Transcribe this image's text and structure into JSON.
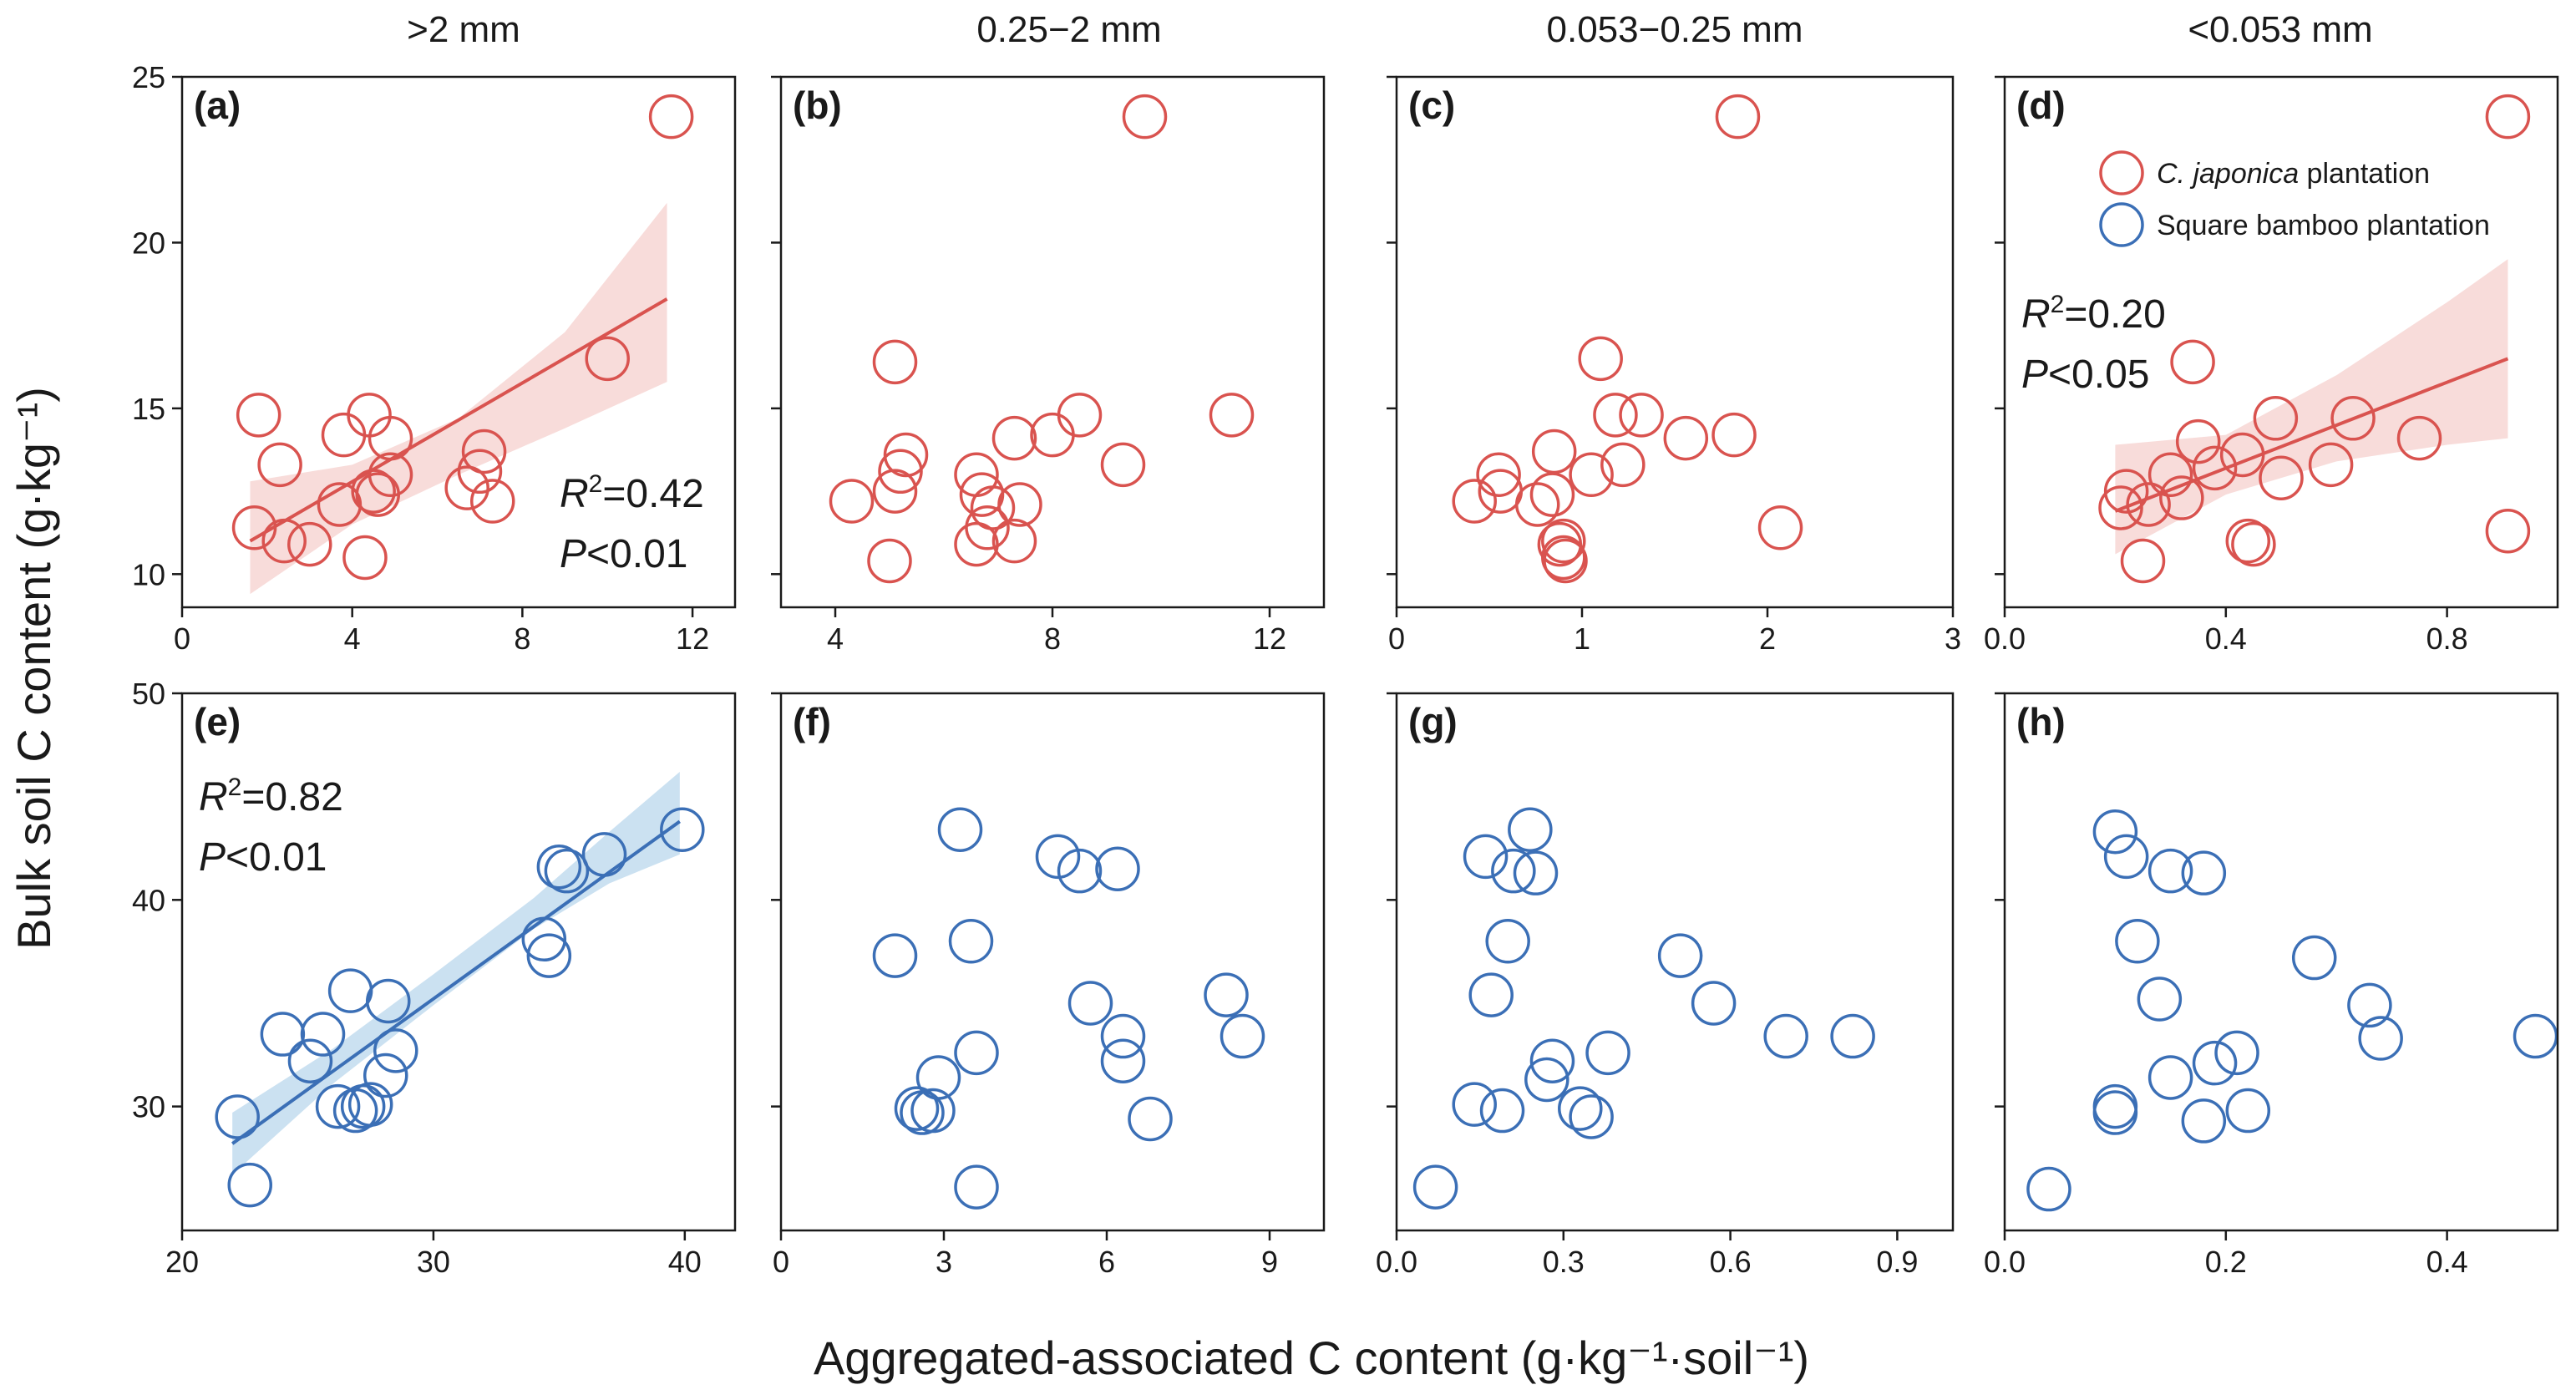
{
  "figure": {
    "column_titles": [
      ">2 mm",
      "0.25−2 mm",
      "0.053−0.25 mm",
      "<0.053 mm"
    ],
    "y_axis_title": "Bulk soil C content (g·kg⁻¹)",
    "x_axis_title": "Aggregated-associated C content (g·kg⁻¹·soil⁻¹)",
    "colors": {
      "japonica": "#d9534f",
      "bamboo": "#3b6fb6",
      "japonica_band": "#f4c4c2",
      "bamboo_band": "#a9cde8"
    }
  },
  "legend": {
    "entries": [
      {
        "italic": "C. japonica",
        "rest": " plantation",
        "series": "japonica"
      },
      {
        "italic": "",
        "rest": "Square bamboo plantation",
        "series": "bamboo"
      }
    ]
  },
  "chart_data": [
    {
      "type": "scatter",
      "panel": "(a)",
      "series": "japonica",
      "xlim": [
        0,
        13
      ],
      "ylim": [
        9,
        25
      ],
      "xticks": [
        0,
        4,
        8,
        12
      ],
      "yticks": [
        10,
        15,
        20,
        25
      ],
      "xtick_labels": [
        "0",
        "4",
        "8",
        "12"
      ],
      "ytick_labels": [
        "10",
        "15",
        "20",
        "25"
      ],
      "x": [
        1.7,
        1.8,
        2.3,
        2.4,
        3.0,
        3.7,
        3.8,
        4.3,
        4.4,
        4.5,
        4.6,
        4.9,
        4.9,
        6.7,
        7.0,
        7.1,
        7.3,
        10.0,
        11.5
      ],
      "y": [
        11.4,
        14.8,
        13.3,
        11.0,
        10.9,
        12.1,
        14.2,
        10.5,
        14.8,
        12.5,
        12.4,
        14.1,
        13.0,
        12.6,
        13.1,
        13.7,
        12.2,
        16.5,
        23.8
      ],
      "fit": {
        "x": [
          1.6,
          11.4
        ],
        "y": [
          11.0,
          18.3
        ]
      },
      "band": {
        "x": [
          1.6,
          4.0,
          6.5,
          9.0,
          11.4
        ],
        "lower": [
          9.4,
          11.5,
          13.0,
          14.4,
          15.8
        ],
        "upper": [
          12.8,
          13.3,
          14.7,
          17.3,
          21.2
        ]
      },
      "stats": {
        "r2_label": "R",
        "r2_sup": "2",
        "r2_value": "=0.42",
        "p_label": "P",
        "p_value": "<0.01"
      }
    },
    {
      "type": "scatter",
      "panel": "(b)",
      "series": "japonica",
      "xlim": [
        3,
        13
      ],
      "ylim": [
        9,
        25
      ],
      "xticks": [
        4,
        8,
        12
      ],
      "yticks": [
        10,
        15,
        20,
        25
      ],
      "xtick_labels": [
        "4",
        "8",
        "12"
      ],
      "ytick_labels": [
        "",
        "",
        "",
        ""
      ],
      "x": [
        4.3,
        5.0,
        5.1,
        5.1,
        5.2,
        5.3,
        6.6,
        6.6,
        6.7,
        6.8,
        6.9,
        7.3,
        7.3,
        7.4,
        8.0,
        8.5,
        9.3,
        9.7,
        11.3
      ],
      "y": [
        12.2,
        10.4,
        16.4,
        12.5,
        13.1,
        13.6,
        13.0,
        10.9,
        12.4,
        11.4,
        12.0,
        14.1,
        11.0,
        12.1,
        14.2,
        14.8,
        13.3,
        23.8,
        14.8
      ],
      "fit": null,
      "band": null,
      "stats": null
    },
    {
      "type": "scatter",
      "panel": "(c)",
      "series": "japonica",
      "xlim": [
        0,
        3
      ],
      "ylim": [
        9,
        25
      ],
      "xticks": [
        0,
        1,
        2,
        3
      ],
      "yticks": [
        10,
        15,
        20,
        25
      ],
      "xtick_labels": [
        "0",
        "1",
        "2",
        "3"
      ],
      "ytick_labels": [
        "",
        "",
        "",
        ""
      ],
      "x": [
        0.42,
        0.55,
        0.56,
        0.76,
        0.84,
        0.85,
        0.88,
        0.9,
        0.9,
        0.91,
        1.05,
        1.1,
        1.18,
        1.22,
        1.32,
        1.56,
        1.82,
        1.84,
        2.07
      ],
      "y": [
        12.2,
        13.0,
        12.5,
        12.1,
        12.4,
        13.7,
        10.9,
        11.0,
        10.5,
        10.4,
        13.0,
        16.5,
        14.8,
        13.3,
        14.8,
        14.1,
        14.2,
        23.8,
        11.4
      ],
      "fit": null,
      "band": null,
      "stats": null
    },
    {
      "type": "scatter",
      "panel": "(d)",
      "series": "japonica",
      "xlim": [
        0.0,
        1.0
      ],
      "ylim": [
        9,
        25
      ],
      "xticks": [
        0.0,
        0.4,
        0.8
      ],
      "yticks": [
        10,
        15,
        20,
        25
      ],
      "xtick_labels": [
        "0.0",
        "0.4",
        "0.8"
      ],
      "ytick_labels": [
        "",
        "",
        "",
        ""
      ],
      "x": [
        0.21,
        0.22,
        0.25,
        0.26,
        0.3,
        0.32,
        0.34,
        0.35,
        0.38,
        0.43,
        0.44,
        0.45,
        0.49,
        0.5,
        0.59,
        0.63,
        0.75,
        0.91,
        0.91
      ],
      "y": [
        12.0,
        12.5,
        10.4,
        12.1,
        13.0,
        12.3,
        16.4,
        14.0,
        13.2,
        13.6,
        11.0,
        10.9,
        14.7,
        12.9,
        13.3,
        14.7,
        14.1,
        11.3,
        23.8
      ],
      "fit": {
        "x": [
          0.2,
          0.91
        ],
        "y": [
          11.9,
          16.5
        ]
      },
      "band": {
        "x": [
          0.2,
          0.4,
          0.6,
          0.8,
          0.91
        ],
        "lower": [
          10.6,
          12.4,
          13.4,
          13.9,
          14.1
        ],
        "upper": [
          13.9,
          14.2,
          16.0,
          18.2,
          19.5
        ]
      },
      "stats": {
        "r2_label": "R",
        "r2_sup": "2",
        "r2_value": "=0.20",
        "p_label": "P",
        "p_value": "<0.05"
      }
    },
    {
      "type": "scatter",
      "panel": "(e)",
      "series": "bamboo",
      "xlim": [
        20,
        42
      ],
      "ylim": [
        24,
        50
      ],
      "xticks": [
        20,
        30,
        40
      ],
      "yticks": [
        30,
        40,
        50
      ],
      "xtick_labels": [
        "20",
        "30",
        "40"
      ],
      "ytick_labels": [
        "30",
        "40",
        "50"
      ],
      "x": [
        22.2,
        22.7,
        24.0,
        25.1,
        25.6,
        26.2,
        26.7,
        26.9,
        27.2,
        27.5,
        28.1,
        28.2,
        28.5,
        34.4,
        34.6,
        35.0,
        35.3,
        36.8,
        39.9
      ],
      "y": [
        29.5,
        26.2,
        33.5,
        32.2,
        33.5,
        30.0,
        35.6,
        29.8,
        30.0,
        30.1,
        31.5,
        35.1,
        32.7,
        38.1,
        37.3,
        41.6,
        41.4,
        42.2,
        43.4
      ],
      "fit": {
        "x": [
          22.0,
          39.8
        ],
        "y": [
          28.2,
          43.8
        ]
      },
      "band": {
        "x": [
          22.0,
          26.0,
          30.0,
          34.0,
          37.0,
          39.8
        ],
        "lower": [
          26.7,
          31.1,
          34.9,
          38.6,
          40.8,
          42.2
        ],
        "upper": [
          29.7,
          32.8,
          36.4,
          40.1,
          43.3,
          46.2
        ]
      },
      "stats": {
        "r2_label": "R",
        "r2_sup": "2",
        "r2_value": "=0.82",
        "p_label": "P",
        "p_value": "<0.01"
      }
    },
    {
      "type": "scatter",
      "panel": "(f)",
      "series": "bamboo",
      "xlim": [
        0,
        10
      ],
      "ylim": [
        24,
        50
      ],
      "xticks": [
        0,
        3,
        6,
        9
      ],
      "yticks": [
        30,
        40,
        50
      ],
      "xtick_labels": [
        "0",
        "3",
        "6",
        "9"
      ],
      "ytick_labels": [
        "",
        "",
        ""
      ],
      "x": [
        2.1,
        2.5,
        2.6,
        2.8,
        2.9,
        3.3,
        3.5,
        3.6,
        3.6,
        5.1,
        5.5,
        5.7,
        6.2,
        6.3,
        6.3,
        6.8,
        8.2,
        8.5
      ],
      "y": [
        37.3,
        29.9,
        29.7,
        29.8,
        31.4,
        43.4,
        38.0,
        32.6,
        26.1,
        42.1,
        41.4,
        35.0,
        41.5,
        33.4,
        32.2,
        29.4,
        35.4,
        33.4
      ],
      "fit": null,
      "band": null,
      "stats": null
    },
    {
      "type": "scatter",
      "panel": "(g)",
      "series": "bamboo",
      "xlim": [
        0.0,
        1.0
      ],
      "ylim": [
        24,
        50
      ],
      "xticks": [
        0.0,
        0.3,
        0.6,
        0.9
      ],
      "yticks": [
        30,
        40,
        50
      ],
      "xtick_labels": [
        "0.0",
        "0.3",
        "0.6",
        "0.9"
      ],
      "ytick_labels": [
        "",
        "",
        ""
      ],
      "x": [
        0.07,
        0.14,
        0.16,
        0.17,
        0.19,
        0.2,
        0.21,
        0.24,
        0.25,
        0.27,
        0.28,
        0.33,
        0.35,
        0.38,
        0.51,
        0.57,
        0.7,
        0.82
      ],
      "y": [
        26.1,
        30.1,
        42.1,
        35.4,
        29.8,
        38.0,
        41.4,
        43.4,
        41.3,
        31.3,
        32.2,
        29.9,
        29.5,
        32.6,
        37.3,
        35.0,
        33.4,
        33.4
      ],
      "fit": null,
      "band": null,
      "stats": null
    },
    {
      "type": "scatter",
      "panel": "(h)",
      "series": "bamboo",
      "xlim": [
        0.0,
        0.5
      ],
      "ylim": [
        24,
        50
      ],
      "xticks": [
        0.0,
        0.2,
        0.4
      ],
      "yticks": [
        30,
        40,
        50
      ],
      "xtick_labels": [
        "0.0",
        "0.2",
        "0.4"
      ],
      "ytick_labels": [
        "",
        "",
        ""
      ],
      "x": [
        0.04,
        0.1,
        0.1,
        0.1,
        0.11,
        0.12,
        0.14,
        0.15,
        0.15,
        0.18,
        0.18,
        0.19,
        0.21,
        0.22,
        0.28,
        0.33,
        0.34,
        0.48
      ],
      "y": [
        26.0,
        29.7,
        30.0,
        43.3,
        42.1,
        38.0,
        35.2,
        41.4,
        31.4,
        29.3,
        41.3,
        32.1,
        32.6,
        29.8,
        37.2,
        34.9,
        33.3,
        33.4
      ],
      "fit": null,
      "band": null,
      "stats": null
    }
  ]
}
